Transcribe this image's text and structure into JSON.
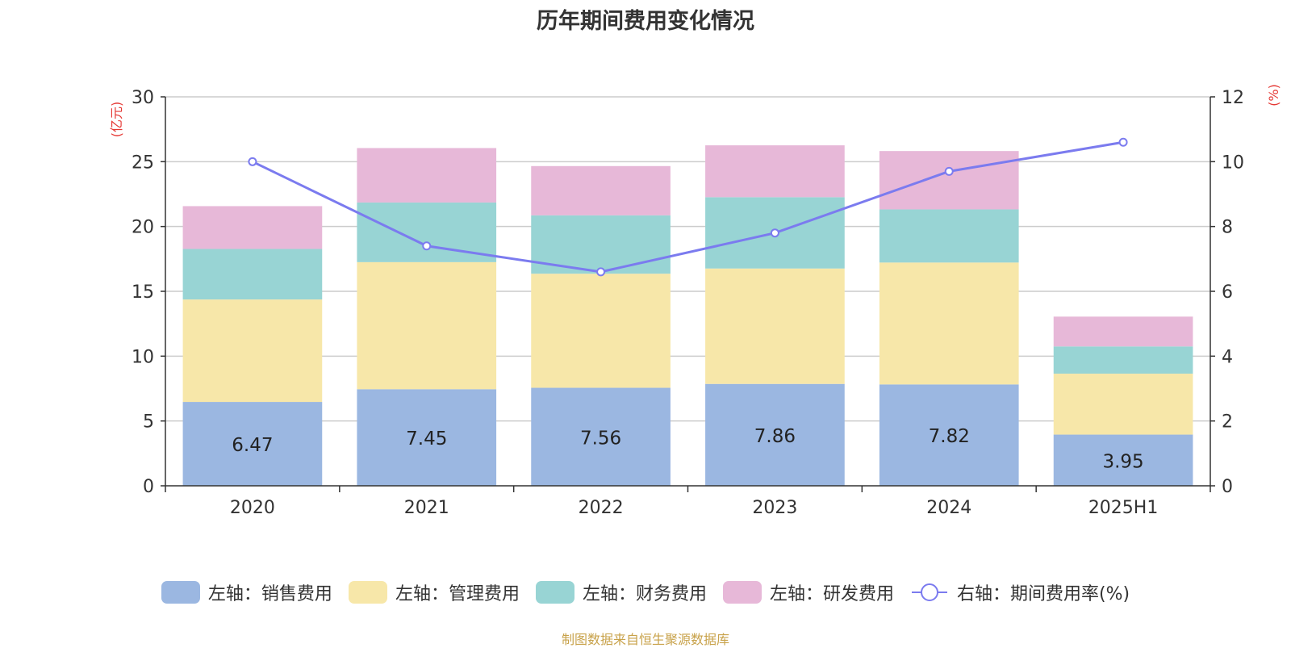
{
  "chart_data": {
    "type": "bar",
    "stacked": true,
    "title": "历年期间费用变化情况",
    "categories": [
      "2020",
      "2021",
      "2022",
      "2023",
      "2024",
      "2025H1"
    ],
    "y_left": {
      "unit_label": "(亿元)",
      "ylim": [
        0,
        30
      ],
      "ticks": [
        0,
        5,
        10,
        15,
        20,
        25,
        30
      ]
    },
    "y_right": {
      "unit_label": "(%)",
      "ylim": [
        0,
        12
      ],
      "ticks": [
        0,
        2,
        4,
        6,
        8,
        10,
        12
      ]
    },
    "series": [
      {
        "name": "左轴：销售费用",
        "axis": "left",
        "type": "bar",
        "color": "#9bb7e1",
        "values": [
          6.47,
          7.45,
          7.56,
          7.86,
          7.82,
          3.95
        ],
        "show_labels": true
      },
      {
        "name": "左轴：管理费用",
        "axis": "left",
        "type": "bar",
        "color": "#f7e7a9",
        "values": [
          7.9,
          9.8,
          8.8,
          8.9,
          9.4,
          4.7
        ],
        "show_labels": false
      },
      {
        "name": "左轴：财务费用",
        "axis": "left",
        "type": "bar",
        "color": "#98d4d4",
        "values": [
          3.9,
          4.6,
          4.5,
          5.5,
          4.1,
          2.1
        ],
        "show_labels": false
      },
      {
        "name": "左轴：研发费用",
        "axis": "left",
        "type": "bar",
        "color": "#e7b8d8",
        "values": [
          3.3,
          4.2,
          3.8,
          4.0,
          4.5,
          2.3
        ],
        "show_labels": false
      },
      {
        "name": "右轴：期间费用率(%)",
        "axis": "right",
        "type": "line",
        "color": "#7b7bef",
        "values": [
          10.0,
          7.4,
          6.6,
          7.8,
          9.7,
          10.6
        ],
        "show_labels": false
      }
    ],
    "legend_position": "bottom",
    "grid": true
  },
  "footer": {
    "source": "制图数据来自恒生聚源数据库"
  }
}
